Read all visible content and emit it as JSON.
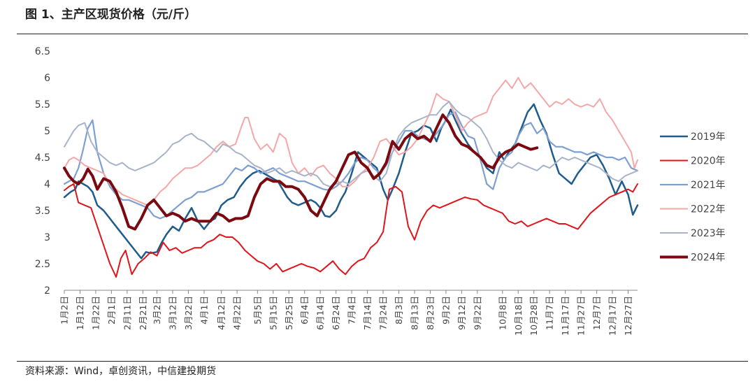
{
  "header": {
    "title": "图 1、主产区现货价格（元/斤）"
  },
  "footer": {
    "source": "资料来源：Wind，卓创资讯，中信建投期货"
  },
  "chart_data": {
    "type": "line",
    "title": "图 1、主产区现货价格（元/斤）",
    "xlabel": "",
    "ylabel": "",
    "ylim": [
      2,
      6.5
    ],
    "yticks": [
      "2",
      "2.5",
      "3",
      "3.5",
      "4",
      "4.5",
      "5",
      "5.5",
      "6",
      "6.5"
    ],
    "grid": false,
    "legend_position": "right",
    "x_tick_labels": [
      "1月2日",
      "1月12日",
      "1月22日",
      "2月1日",
      "2月11日",
      "2月21日",
      "3月2日",
      "3月12日",
      "3月22日",
      "4月1日",
      "4月12日",
      "4月22日",
      "5月5日",
      "5月15日",
      "5月25日",
      "6月4日",
      "6月14日",
      "6月24日",
      "7月4日",
      "7月14日",
      "7月24日",
      "8月3日",
      "8月13日",
      "8月23日",
      "9月2日",
      "9月12日",
      "9月22日",
      "10月8日",
      "10月18日",
      "10月28日",
      "11月7日",
      "11月17日",
      "11月27日",
      "12月7日",
      "12月17日",
      "12月27日"
    ],
    "x_tick_days": [
      1,
      11,
      21,
      31,
      41,
      51,
      60,
      70,
      80,
      90,
      101,
      111,
      124,
      134,
      144,
      154,
      164,
      174,
      184,
      194,
      204,
      214,
      224,
      234,
      244,
      254,
      264,
      280,
      290,
      300,
      310,
      320,
      330,
      340,
      350,
      360
    ],
    "x_range": [
      1,
      366
    ],
    "series": [
      {
        "name": "2019年",
        "color": "#1f5c8b",
        "width": 2.5,
        "x": [
          1,
          5,
          8,
          10,
          13,
          16,
          19,
          22,
          26,
          30,
          34,
          38,
          42,
          46,
          50,
          53,
          56,
          60,
          63,
          66,
          70,
          74,
          78,
          82,
          86,
          90,
          94,
          97,
          101,
          105,
          109,
          113,
          117,
          121,
          125,
          128,
          131,
          134,
          137,
          140,
          143,
          146,
          150,
          154,
          158,
          161,
          164,
          167,
          170,
          174,
          177,
          180,
          184,
          188,
          192,
          196,
          200,
          204,
          207,
          210,
          214,
          218,
          222,
          226,
          230,
          234,
          238,
          241,
          244,
          247,
          250,
          254,
          258,
          262,
          266,
          270,
          274,
          278,
          281,
          284,
          288,
          292,
          296,
          300,
          304,
          308,
          312,
          316,
          320,
          324,
          328,
          332,
          336,
          340,
          344,
          348,
          352,
          356,
          360,
          363,
          366
        ],
        "y": [
          3.75,
          3.85,
          3.9,
          4.05,
          4.0,
          3.95,
          3.85,
          3.6,
          3.5,
          3.35,
          3.2,
          3.05,
          2.9,
          2.75,
          2.6,
          2.72,
          2.7,
          2.72,
          2.9,
          3.05,
          3.2,
          3.12,
          3.35,
          3.55,
          3.3,
          3.15,
          3.3,
          3.35,
          3.6,
          3.7,
          3.75,
          3.95,
          4.1,
          4.2,
          4.25,
          4.2,
          4.15,
          4.1,
          4.05,
          3.9,
          3.75,
          3.65,
          3.6,
          3.65,
          3.7,
          3.65,
          3.55,
          3.4,
          3.38,
          3.5,
          3.7,
          3.85,
          4.2,
          4.6,
          4.5,
          4.4,
          4.3,
          3.9,
          3.7,
          3.9,
          4.2,
          4.6,
          4.95,
          5.0,
          5.1,
          5.05,
          4.8,
          5.05,
          5.2,
          5.4,
          5.2,
          4.95,
          4.75,
          4.6,
          4.5,
          4.3,
          4.2,
          4.6,
          4.45,
          4.6,
          4.75,
          5.05,
          5.35,
          5.5,
          5.2,
          4.95,
          4.55,
          4.2,
          4.1,
          4.0,
          4.2,
          4.35,
          4.5,
          4.55,
          4.35,
          4.1,
          3.8,
          4.05,
          3.8,
          3.42,
          3.6
        ]
      },
      {
        "name": "2020年",
        "color": "#e0141b",
        "width": 2,
        "x": [
          1,
          4,
          7,
          10,
          14,
          18,
          22,
          26,
          30,
          34,
          37,
          40,
          44,
          48,
          52,
          56,
          60,
          64,
          68,
          72,
          76,
          80,
          84,
          88,
          92,
          96,
          100,
          104,
          108,
          112,
          116,
          120,
          124,
          128,
          132,
          136,
          140,
          144,
          148,
          152,
          156,
          160,
          164,
          168,
          172,
          176,
          180,
          184,
          188,
          192,
          196,
          200,
          204,
          206,
          208,
          212,
          216,
          220,
          224,
          228,
          232,
          236,
          240,
          244,
          248,
          252,
          256,
          260,
          264,
          268,
          272,
          276,
          280,
          284,
          288,
          292,
          296,
          300,
          304,
          308,
          312,
          316,
          320,
          324,
          328,
          332,
          336,
          340,
          344,
          348,
          352,
          356,
          360,
          363,
          366
        ],
        "y": [
          3.88,
          3.95,
          4.0,
          3.65,
          3.6,
          3.55,
          3.2,
          2.85,
          2.5,
          2.25,
          2.6,
          2.75,
          2.3,
          2.5,
          2.6,
          2.72,
          2.65,
          2.9,
          2.75,
          2.8,
          2.7,
          2.75,
          2.8,
          2.8,
          2.9,
          2.95,
          3.05,
          3.0,
          3.0,
          2.9,
          2.75,
          2.65,
          2.55,
          2.5,
          2.4,
          2.5,
          2.35,
          2.4,
          2.45,
          2.5,
          2.45,
          2.42,
          2.35,
          2.45,
          2.55,
          2.4,
          2.3,
          2.45,
          2.55,
          2.6,
          2.8,
          2.9,
          3.1,
          3.5,
          3.9,
          3.95,
          3.85,
          3.2,
          2.95,
          3.3,
          3.5,
          3.6,
          3.55,
          3.6,
          3.65,
          3.7,
          3.75,
          3.72,
          3.7,
          3.6,
          3.55,
          3.5,
          3.45,
          3.3,
          3.25,
          3.3,
          3.2,
          3.25,
          3.3,
          3.35,
          3.3,
          3.25,
          3.25,
          3.2,
          3.15,
          3.3,
          3.45,
          3.55,
          3.65,
          3.75,
          3.8,
          3.85,
          3.9,
          3.85,
          4.0
        ]
      },
      {
        "name": "2021年",
        "color": "#7e9fd2",
        "width": 2.2,
        "x": [
          1,
          4,
          7,
          10,
          13,
          16,
          19,
          22,
          26,
          30,
          34,
          38,
          42,
          46,
          50,
          54,
          58,
          62,
          66,
          70,
          74,
          78,
          82,
          86,
          90,
          94,
          98,
          102,
          106,
          110,
          114,
          118,
          122,
          126,
          130,
          134,
          138,
          142,
          146,
          150,
          154,
          158,
          162,
          166,
          170,
          174,
          178,
          182,
          186,
          190,
          194,
          198,
          202,
          206,
          210,
          214,
          218,
          222,
          226,
          230,
          234,
          238,
          242,
          246,
          250,
          254,
          258,
          262,
          266,
          270,
          274,
          278,
          282,
          286,
          290,
          294,
          298,
          302,
          306,
          310,
          314,
          318,
          322,
          326,
          330,
          334,
          338,
          342,
          346,
          350,
          354,
          358,
          362,
          366
        ],
        "y": [
          4.0,
          4.05,
          4.1,
          4.3,
          4.65,
          5.05,
          5.2,
          4.6,
          4.2,
          3.95,
          3.8,
          3.7,
          3.7,
          3.65,
          3.6,
          3.55,
          3.4,
          3.35,
          3.4,
          3.5,
          3.6,
          3.7,
          3.75,
          3.85,
          3.85,
          3.9,
          3.95,
          4.0,
          4.15,
          4.3,
          4.25,
          4.35,
          4.3,
          4.2,
          4.25,
          4.3,
          4.2,
          4.15,
          4.1,
          4.05,
          4.05,
          4.0,
          3.95,
          3.9,
          3.88,
          3.95,
          4.05,
          4.2,
          4.4,
          4.5,
          4.45,
          4.3,
          4.2,
          4.35,
          4.6,
          4.8,
          5.0,
          5.0,
          4.9,
          4.85,
          4.8,
          4.95,
          5.1,
          5.3,
          5.35,
          5.1,
          4.9,
          4.85,
          4.45,
          4.0,
          3.9,
          4.3,
          4.5,
          4.6,
          4.9,
          5.1,
          5.15,
          4.95,
          5.05,
          4.8,
          4.7,
          4.7,
          4.65,
          4.6,
          4.6,
          4.55,
          4.6,
          4.55,
          4.5,
          4.5,
          4.45,
          4.5,
          4.3,
          4.25
        ]
      },
      {
        "name": "2022年",
        "color": "#f4a7a7",
        "width": 2,
        "x": [
          1,
          4,
          7,
          10,
          14,
          18,
          22,
          26,
          30,
          34,
          38,
          42,
          46,
          50,
          54,
          58,
          62,
          66,
          70,
          74,
          78,
          82,
          86,
          90,
          94,
          98,
          102,
          106,
          110,
          114,
          116,
          118,
          122,
          126,
          130,
          134,
          138,
          142,
          146,
          150,
          154,
          158,
          162,
          166,
          170,
          174,
          178,
          182,
          186,
          190,
          194,
          198,
          202,
          206,
          210,
          214,
          218,
          222,
          226,
          230,
          234,
          238,
          242,
          246,
          250,
          254,
          258,
          262,
          266,
          270,
          274,
          278,
          282,
          286,
          290,
          294,
          298,
          302,
          306,
          310,
          314,
          318,
          322,
          326,
          330,
          334,
          338,
          342,
          346,
          350,
          354,
          358,
          362,
          364,
          366
        ],
        "y": [
          4.3,
          4.45,
          4.5,
          4.45,
          4.35,
          4.3,
          4.25,
          4.2,
          4.0,
          3.9,
          3.8,
          3.75,
          3.7,
          3.65,
          3.6,
          3.7,
          3.85,
          3.95,
          4.1,
          4.2,
          4.3,
          4.3,
          4.35,
          4.45,
          4.55,
          4.7,
          4.8,
          4.7,
          4.75,
          5.1,
          5.25,
          5.25,
          4.85,
          4.65,
          4.75,
          4.6,
          4.95,
          4.85,
          4.4,
          4.2,
          4.3,
          4.15,
          4.3,
          4.35,
          4.2,
          4.1,
          3.95,
          3.95,
          4.05,
          4.2,
          4.3,
          4.5,
          4.8,
          4.85,
          4.7,
          4.55,
          4.6,
          4.7,
          4.85,
          5.1,
          5.35,
          5.7,
          5.6,
          5.55,
          5.3,
          5.0,
          5.15,
          5.25,
          5.3,
          5.35,
          5.65,
          5.8,
          5.95,
          5.8,
          6.0,
          5.8,
          5.9,
          5.75,
          5.6,
          5.45,
          5.55,
          5.5,
          5.6,
          5.5,
          5.45,
          5.5,
          5.45,
          5.6,
          5.35,
          5.2,
          5.0,
          4.8,
          4.6,
          4.3,
          4.45
        ]
      },
      {
        "name": "2023年",
        "color": "#a7b4c8",
        "width": 2,
        "x": [
          1,
          4,
          7,
          10,
          14,
          18,
          22,
          26,
          30,
          34,
          38,
          42,
          46,
          50,
          54,
          58,
          62,
          66,
          70,
          74,
          78,
          82,
          86,
          90,
          94,
          98,
          102,
          106,
          110,
          114,
          118,
          122,
          126,
          130,
          134,
          138,
          142,
          146,
          150,
          154,
          158,
          162,
          166,
          170,
          174,
          178,
          182,
          186,
          190,
          194,
          198,
          202,
          206,
          210,
          214,
          218,
          222,
          226,
          230,
          234,
          238,
          242,
          246,
          250,
          254,
          258,
          262,
          266,
          270,
          274,
          278,
          282,
          286,
          290,
          294,
          298,
          302,
          306,
          310,
          314,
          318,
          322,
          326,
          330,
          334,
          338,
          342,
          346,
          350,
          354,
          358,
          362,
          366
        ],
        "y": [
          4.7,
          4.85,
          5.0,
          5.1,
          5.15,
          4.8,
          4.6,
          4.5,
          4.4,
          4.35,
          4.4,
          4.3,
          4.25,
          4.3,
          4.35,
          4.4,
          4.5,
          4.6,
          4.75,
          4.8,
          4.9,
          4.95,
          4.85,
          4.8,
          4.7,
          4.6,
          4.75,
          4.7,
          4.6,
          4.55,
          4.45,
          4.35,
          4.3,
          4.2,
          4.25,
          4.3,
          4.2,
          4.25,
          4.2,
          4.15,
          4.2,
          4.15,
          4.0,
          3.95,
          4.0,
          4.05,
          4.0,
          4.1,
          4.2,
          4.25,
          4.15,
          4.05,
          4.2,
          4.6,
          4.9,
          5.05,
          5.15,
          5.2,
          5.25,
          5.3,
          5.3,
          5.45,
          5.55,
          5.4,
          5.3,
          5.25,
          5.15,
          5.05,
          4.85,
          4.6,
          4.45,
          4.35,
          4.3,
          4.4,
          4.35,
          4.3,
          4.25,
          4.35,
          4.3,
          4.4,
          4.5,
          4.45,
          4.5,
          4.45,
          4.4,
          4.35,
          4.3,
          4.2,
          4.1,
          4.05,
          4.15,
          4.2,
          4.25
        ]
      },
      {
        "name": "2024年",
        "color": "#7b0a10",
        "width": 4,
        "x": [
          1,
          4,
          7,
          10,
          13,
          16,
          19,
          22,
          26,
          30,
          34,
          38,
          42,
          46,
          50,
          54,
          58,
          62,
          66,
          70,
          74,
          78,
          82,
          86,
          90,
          94,
          98,
          102,
          106,
          110,
          114,
          118,
          122,
          126,
          130,
          134,
          138,
          142,
          146,
          150,
          154,
          158,
          162,
          166,
          170,
          174,
          178,
          182,
          186,
          190,
          194,
          198,
          202,
          206,
          210,
          214,
          218,
          222,
          226,
          230,
          234,
          238,
          242,
          246,
          250,
          254,
          258,
          262,
          266,
          270,
          274,
          278,
          282,
          286,
          290,
          294,
          298,
          302
        ],
        "y": [
          4.3,
          4.15,
          4.05,
          4.0,
          4.1,
          4.28,
          4.15,
          3.9,
          4.1,
          4.05,
          3.85,
          3.55,
          3.2,
          3.15,
          3.35,
          3.6,
          3.7,
          3.55,
          3.4,
          3.45,
          3.4,
          3.3,
          3.35,
          3.3,
          3.3,
          3.3,
          3.45,
          3.4,
          3.3,
          3.35,
          3.35,
          3.4,
          3.75,
          4.0,
          4.1,
          4.05,
          4.05,
          3.95,
          3.95,
          3.9,
          3.75,
          3.5,
          3.4,
          3.65,
          3.9,
          4.05,
          4.3,
          4.55,
          4.6,
          4.4,
          4.3,
          4.1,
          4.2,
          4.4,
          4.8,
          4.65,
          4.85,
          4.95,
          4.85,
          4.9,
          4.8,
          5.05,
          5.3,
          5.15,
          4.9,
          4.75,
          4.7,
          4.6,
          4.5,
          4.35,
          4.3,
          4.5,
          4.6,
          4.65,
          4.75,
          4.7,
          4.65,
          4.68
        ]
      }
    ]
  }
}
